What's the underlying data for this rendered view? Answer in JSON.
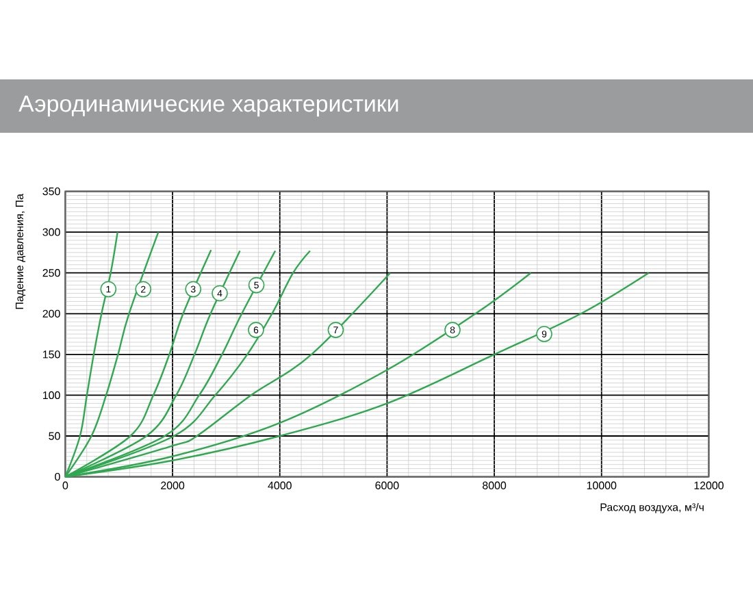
{
  "chart_data": {
    "type": "line",
    "title": "Аэродинамические характеристики",
    "xlabel": "Расход воздуха, м³/ч",
    "ylabel": "Падение давления, Па",
    "xlim": [
      0,
      12000
    ],
    "ylim": [
      0,
      350
    ],
    "xticks": [
      0,
      2000,
      4000,
      6000,
      8000,
      10000,
      12000
    ],
    "yticks": [
      0,
      50,
      100,
      150,
      200,
      250,
      300,
      350
    ],
    "grid": true,
    "marker": "none",
    "line_style": "solid",
    "series": [
      {
        "color": "#2fa84f",
        "x": [
          0,
          274,
          402,
          530,
          675,
          846,
          974
        ],
        "values": [
          0,
          50,
          100,
          150,
          200,
          250,
          300
        ]
      },
      {
        "color": "#2fa84f",
        "x": [
          0,
          487,
          761,
          983,
          1188,
          1735
        ],
        "values": [
          0,
          50,
          100,
          150,
          200,
          300
        ]
      },
      {
        "color": "#2fa84f",
        "x": [
          0,
          1214,
          1641,
          1940,
          2197,
          2718
        ],
        "values": [
          0,
          50,
          100,
          150,
          200,
          278
        ]
      },
      {
        "color": "#2fa84f",
        "x": [
          0,
          1513,
          2068,
          2410,
          2709,
          3256
        ],
        "values": [
          0,
          50,
          100,
          150,
          200,
          277
        ]
      },
      {
        "color": "#2fa84f",
        "x": [
          0,
          1855,
          2496,
          2923,
          3291,
          3915
        ],
        "values": [
          0,
          50,
          100,
          150,
          200,
          277
        ]
      },
      {
        "color": "#2fa84f",
        "x": [
          0,
          2026,
          2795,
          3393,
          3855,
          4248,
          4564
        ],
        "values": [
          0,
          50,
          100,
          150,
          200,
          250,
          277
        ]
      },
      {
        "color": "#2fa84f",
        "x": [
          0,
          2000,
          2453,
          3462,
          4590,
          6059
        ],
        "values": [
          0,
          38,
          50,
          100,
          150,
          250
        ]
      },
      {
        "color": "#2fa84f",
        "x": [
          0,
          2000,
          4000,
          6000,
          7649,
          8682
        ],
        "values": [
          0,
          25,
          66,
          131,
          200,
          250
        ]
      },
      {
        "color": "#2fa84f",
        "x": [
          0,
          2000,
          4000,
          6000,
          8000,
          9615,
          10879
        ],
        "values": [
          0,
          20,
          50,
          90,
          150,
          200,
          250
        ]
      }
    ],
    "annotations": [
      {
        "text": "1",
        "x": 803,
        "y": 230
      },
      {
        "text": "2",
        "x": 1453,
        "y": 230
      },
      {
        "text": "3",
        "x": 2385,
        "y": 230
      },
      {
        "text": "4",
        "x": 2880,
        "y": 225
      },
      {
        "text": "5",
        "x": 3564,
        "y": 235
      },
      {
        "text": "6",
        "x": 3556,
        "y": 180
      },
      {
        "text": "7",
        "x": 5043,
        "y": 180
      },
      {
        "text": "8",
        "x": 7221,
        "y": 180
      },
      {
        "text": "9",
        "x": 8931,
        "y": 175
      }
    ]
  }
}
